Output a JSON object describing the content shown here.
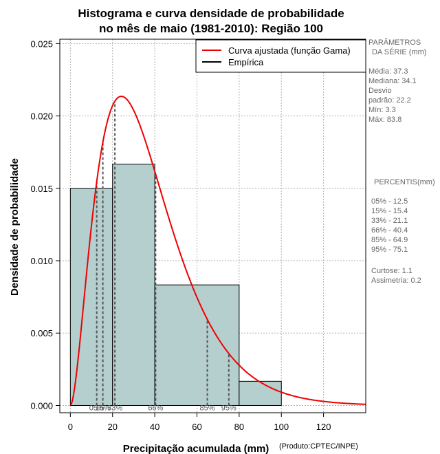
{
  "chart_data": {
    "type": "bar",
    "title_line1": "Histograma e curva densidade de probabilidade",
    "title_line2": "no mês de maio (1981-2010): Região 100",
    "xlabel": "Precipitação acumulada (mm)",
    "ylabel": "Densidade de probabilidade",
    "credit": "(Produto:CPTEC/INPE)",
    "xlim": [
      -5,
      140
    ],
    "ylim": [
      -0.0005,
      0.0253
    ],
    "x_ticks": [
      0,
      20,
      40,
      60,
      80,
      100,
      120
    ],
    "y_ticks": [
      0.0,
      0.005,
      0.01,
      0.015,
      0.02,
      0.025
    ],
    "y_tick_labels": [
      "0.000",
      "0.005",
      "0.010",
      "0.015",
      "0.020",
      "0.025"
    ],
    "grid": true,
    "histogram": {
      "bins": [
        {
          "from": 0,
          "to": 20,
          "density": 0.015
        },
        {
          "from": 20,
          "to": 40,
          "density": 0.01667
        },
        {
          "from": 40,
          "to": 80,
          "density": 0.00833
        },
        {
          "from": 80,
          "to": 100,
          "density": 0.00167
        }
      ],
      "fill_color": "#b5cfcf",
      "edge_color": "#000000"
    },
    "gamma_curve": {
      "name": "Curva ajustada (função Gama)",
      "shape": 2.83,
      "scale": 13.2,
      "x_max": 140,
      "color": "#ee0000"
    },
    "legend": [
      {
        "label": "Curva ajustada (função Gama)",
        "color": "#ee0000"
      },
      {
        "label": "Empírica",
        "color": "#000000"
      }
    ],
    "percentile_markers": [
      {
        "label": "05%",
        "value": 12.5
      },
      {
        "label": "15%",
        "value": 15.4
      },
      {
        "label": "33%",
        "value": 21.1
      },
      {
        "label": "66%",
        "value": 40.4
      },
      {
        "label": "85%",
        "value": 64.9
      },
      {
        "label": "95%",
        "value": 75.1
      }
    ]
  },
  "side_panel": {
    "params_title_1": "PARÂMETROS",
    "params_title_2": "DA SÉRIE (mm)",
    "stats": [
      "Média:  37.3",
      "Mediana:  34.1",
      "Desvio",
      "padrão:  22.2",
      "Mín:  3.3",
      "Máx:  83.8"
    ],
    "percentis_title": "PERCENTIS(mm)",
    "percentis": [
      "05% -   12.5",
      "15% -   15.4",
      "33% -   21.1",
      "66% -   40.4",
      "85% -   64.9",
      "95% -   75.1"
    ],
    "extra": [
      "Curtose:  1.1",
      "Assimetria:  0.2"
    ]
  }
}
